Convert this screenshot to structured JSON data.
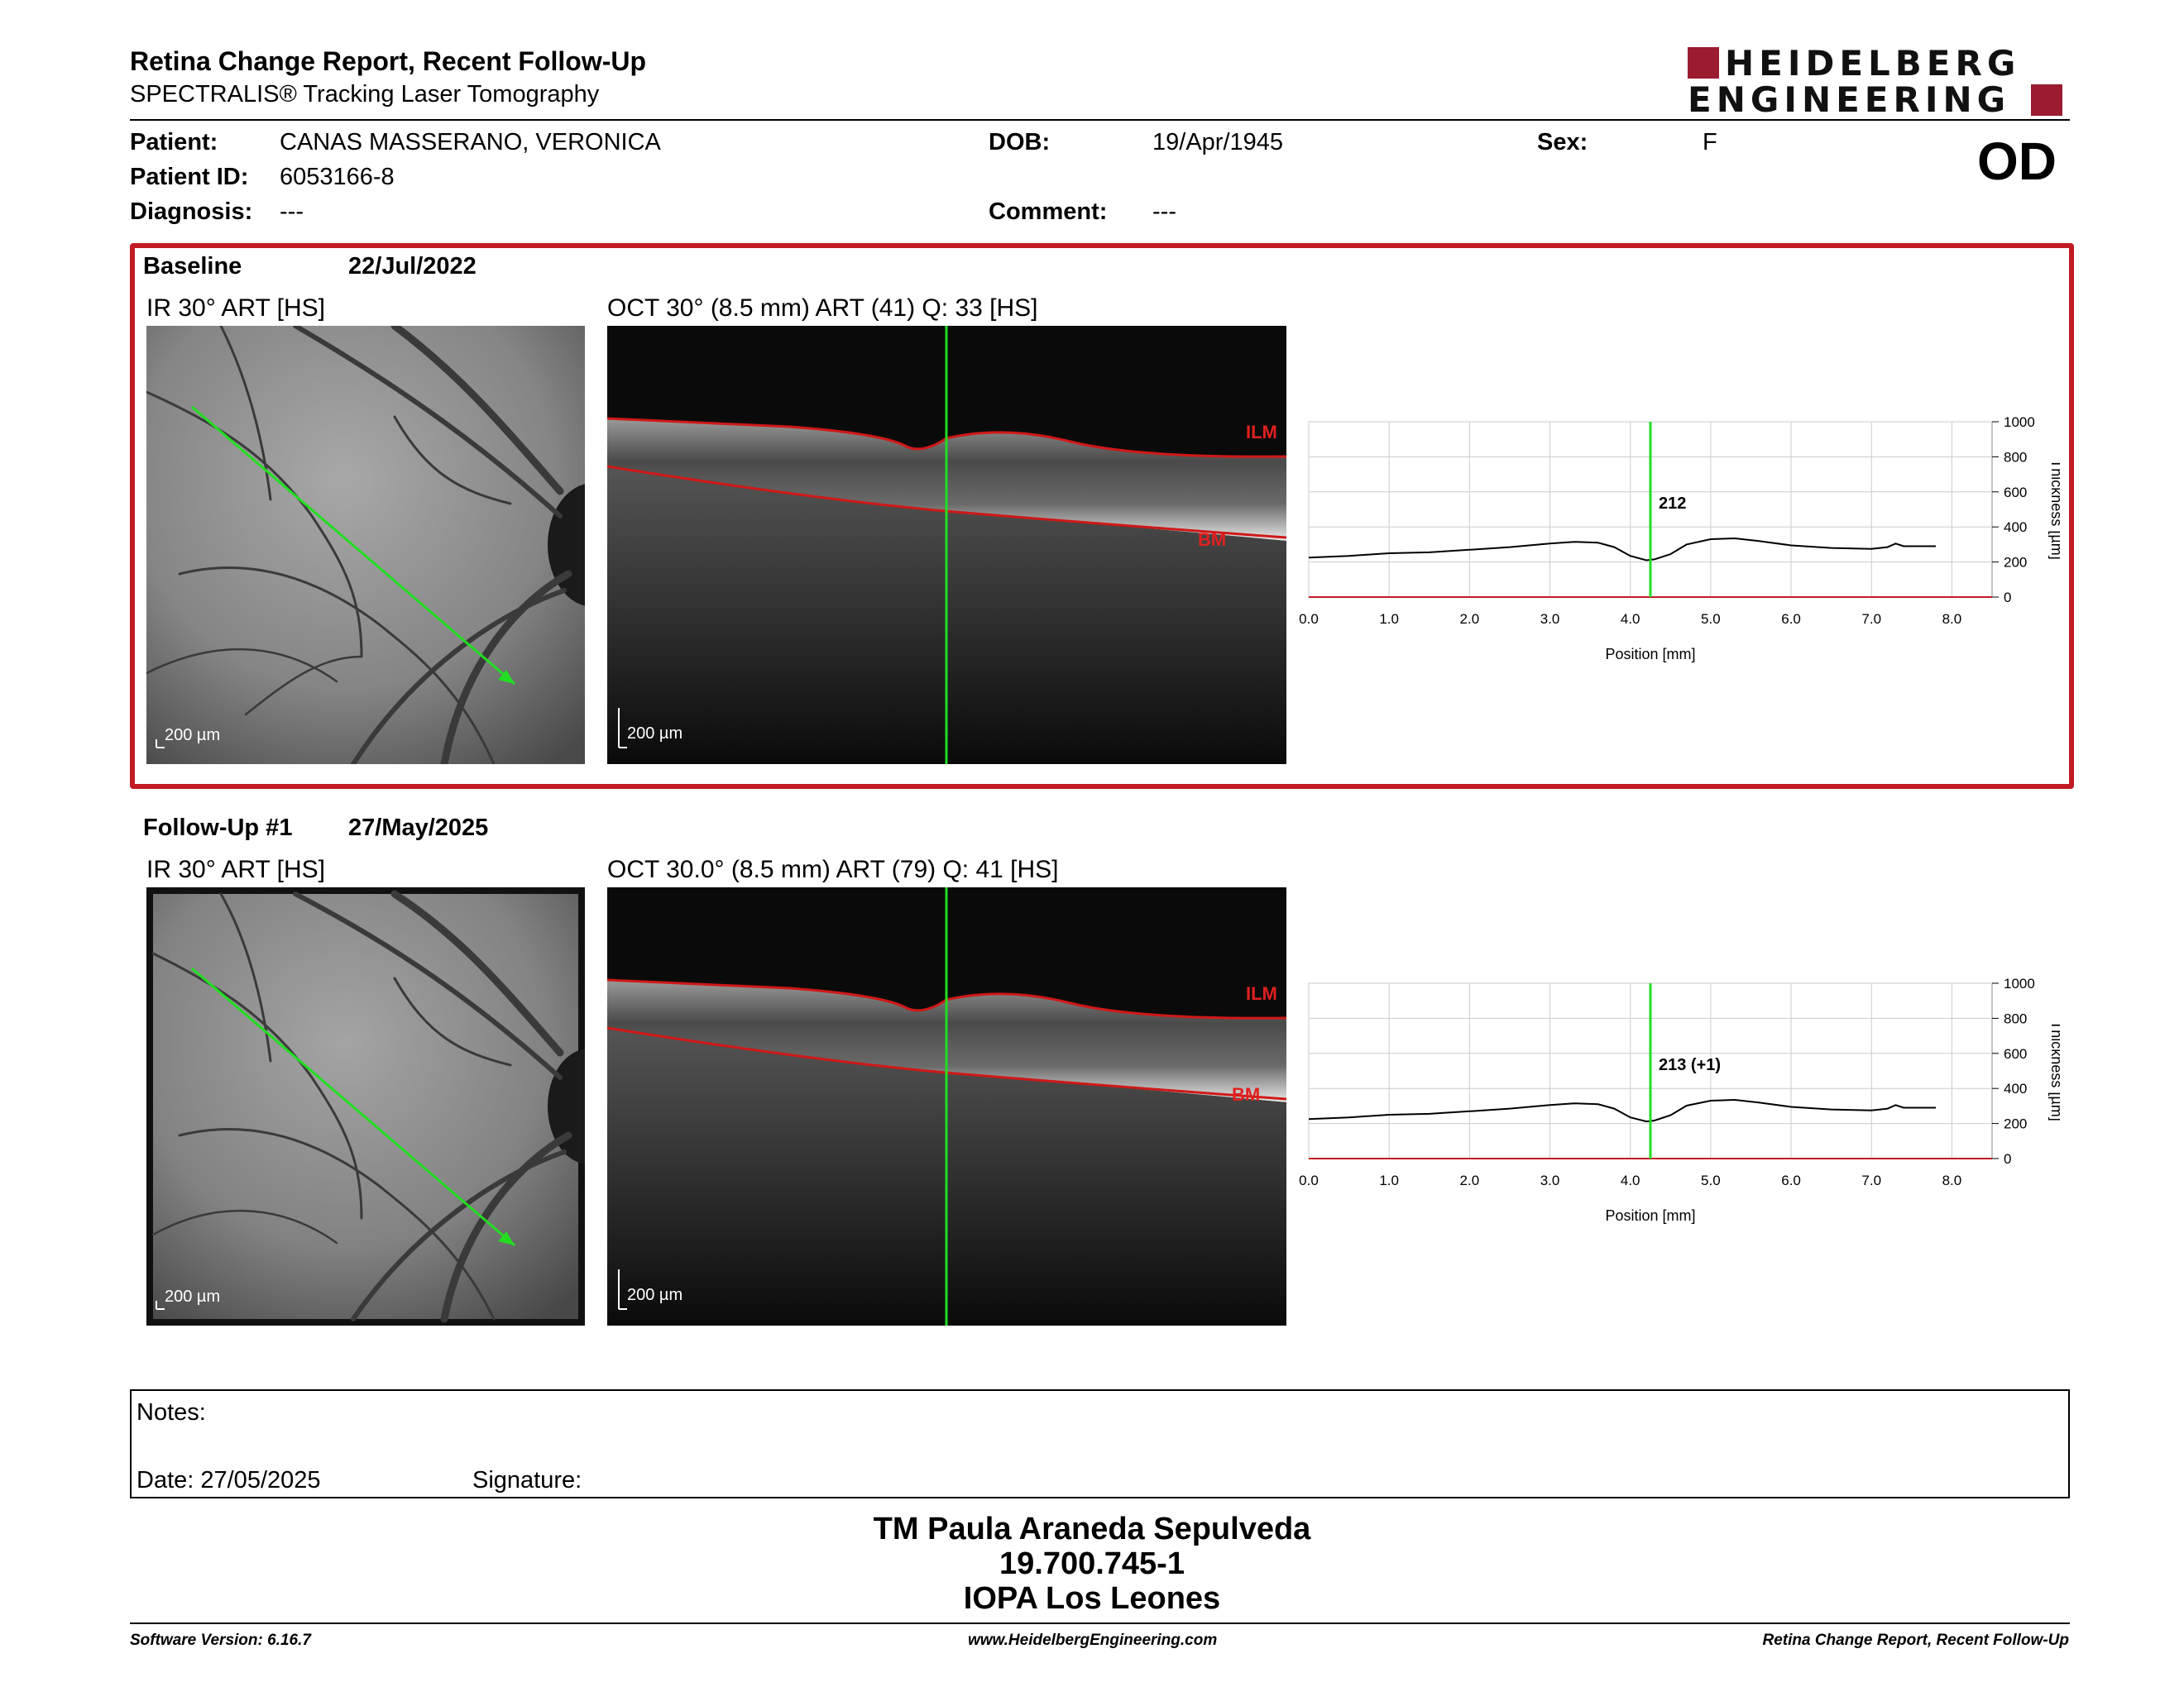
{
  "header": {
    "title": "Retina Change Report, Recent Follow-Up",
    "subtitle": "SPECTRALIS® Tracking Laser Tomography",
    "logo_line1": "HEIDELBERG",
    "logo_line2": "ENGINEERING",
    "eye": "OD"
  },
  "patient": {
    "patient_label": "Patient:",
    "patient_value": "CANAS MASSERANO, VERONICA",
    "id_label": "Patient ID:",
    "id_value": "6053166-8",
    "diagnosis_label": "Diagnosis:",
    "diagnosis_value": "---",
    "dob_label": "DOB:",
    "dob_value": "19/Apr/1945",
    "comment_label": "Comment:",
    "comment_value": "---",
    "sex_label": "Sex:",
    "sex_value": "F"
  },
  "exams": [
    {
      "label": "Baseline",
      "date": "22/Jul/2022",
      "ir_title": "IR 30° ART [HS]",
      "oct_title": "OCT 30° (8.5 mm) ART (41) Q: 33 [HS]",
      "scale_ir": "200 µm",
      "scale_oct": "200 µm",
      "ilm": "ILM",
      "bm": "BM",
      "marker_value": "212"
    },
    {
      "label": "Follow-Up #1",
      "date": "27/May/2025",
      "ir_title": "IR 30° ART [HS]",
      "oct_title": "OCT 30.0° (8.5 mm) ART (79) Q: 41 [HS]",
      "scale_ir": "200 µm",
      "scale_oct": "200 µm",
      "ilm": "ILM",
      "bm": "BM",
      "marker_value": "213 (+1)"
    }
  ],
  "chart_data": [
    {
      "type": "line",
      "xlabel": "Position [mm]",
      "ylabel": "Thickness [µm]",
      "xlim": [
        0,
        8.5
      ],
      "ylim": [
        0,
        1000
      ],
      "x_ticks": [
        "0.0",
        "1.0",
        "2.0",
        "3.0",
        "4.0",
        "5.0",
        "6.0",
        "7.0",
        "8.0"
      ],
      "y_ticks": [
        "0",
        "200",
        "400",
        "600",
        "800",
        "1000"
      ],
      "marker_x": 4.25,
      "marker_label": "212",
      "series": [
        {
          "x": [
            0,
            0.5,
            1,
            1.5,
            2,
            2.5,
            3,
            3.3,
            3.6,
            3.8,
            4.0,
            4.2,
            4.3,
            4.5,
            4.7,
            5.0,
            5.3,
            5.6,
            6.0,
            6.5,
            7.0,
            7.2,
            7.3,
            7.4,
            7.6,
            7.8
          ],
          "values": [
            225,
            235,
            250,
            255,
            270,
            285,
            305,
            315,
            310,
            285,
            235,
            210,
            215,
            245,
            300,
            330,
            335,
            320,
            295,
            280,
            275,
            285,
            305,
            290,
            290,
            290
          ]
        }
      ]
    },
    {
      "type": "line",
      "xlabel": "Position [mm]",
      "ylabel": "Thickness [µm]",
      "xlim": [
        0,
        8.5
      ],
      "ylim": [
        0,
        1000
      ],
      "x_ticks": [
        "0.0",
        "1.0",
        "2.0",
        "3.0",
        "4.0",
        "5.0",
        "6.0",
        "7.0",
        "8.0"
      ],
      "y_ticks": [
        "0",
        "200",
        "400",
        "600",
        "800",
        "1000"
      ],
      "marker_x": 4.25,
      "marker_label": "213 (+1)",
      "series": [
        {
          "x": [
            0,
            0.5,
            1,
            1.5,
            2,
            2.5,
            3,
            3.3,
            3.6,
            3.8,
            4.0,
            4.2,
            4.3,
            4.5,
            4.7,
            5.0,
            5.3,
            5.6,
            6.0,
            6.5,
            7.0,
            7.2,
            7.3,
            7.4,
            7.6,
            7.8
          ],
          "values": [
            225,
            235,
            250,
            255,
            270,
            285,
            305,
            315,
            310,
            285,
            235,
            212,
            217,
            247,
            302,
            330,
            335,
            320,
            295,
            280,
            275,
            285,
            305,
            290,
            290,
            290
          ]
        }
      ]
    }
  ],
  "notes": {
    "notes_label": "Notes:",
    "date_label": "Date: 27/05/2025",
    "signature_label": "Signature:"
  },
  "signature_block": {
    "name": "TM Paula Araneda Sepulveda",
    "id": "19.700.745-1",
    "org": "IOPA Los Leones"
  },
  "footer": {
    "software": "Software Version: 6.16.7",
    "website": "www.HeidelbergEngineering.com",
    "report": "Retina Change Report, Recent Follow-Up"
  },
  "colors": {
    "accent_red": "#c11b24",
    "logo_red": "#9b1b30",
    "scan_green": "#22dd22"
  }
}
